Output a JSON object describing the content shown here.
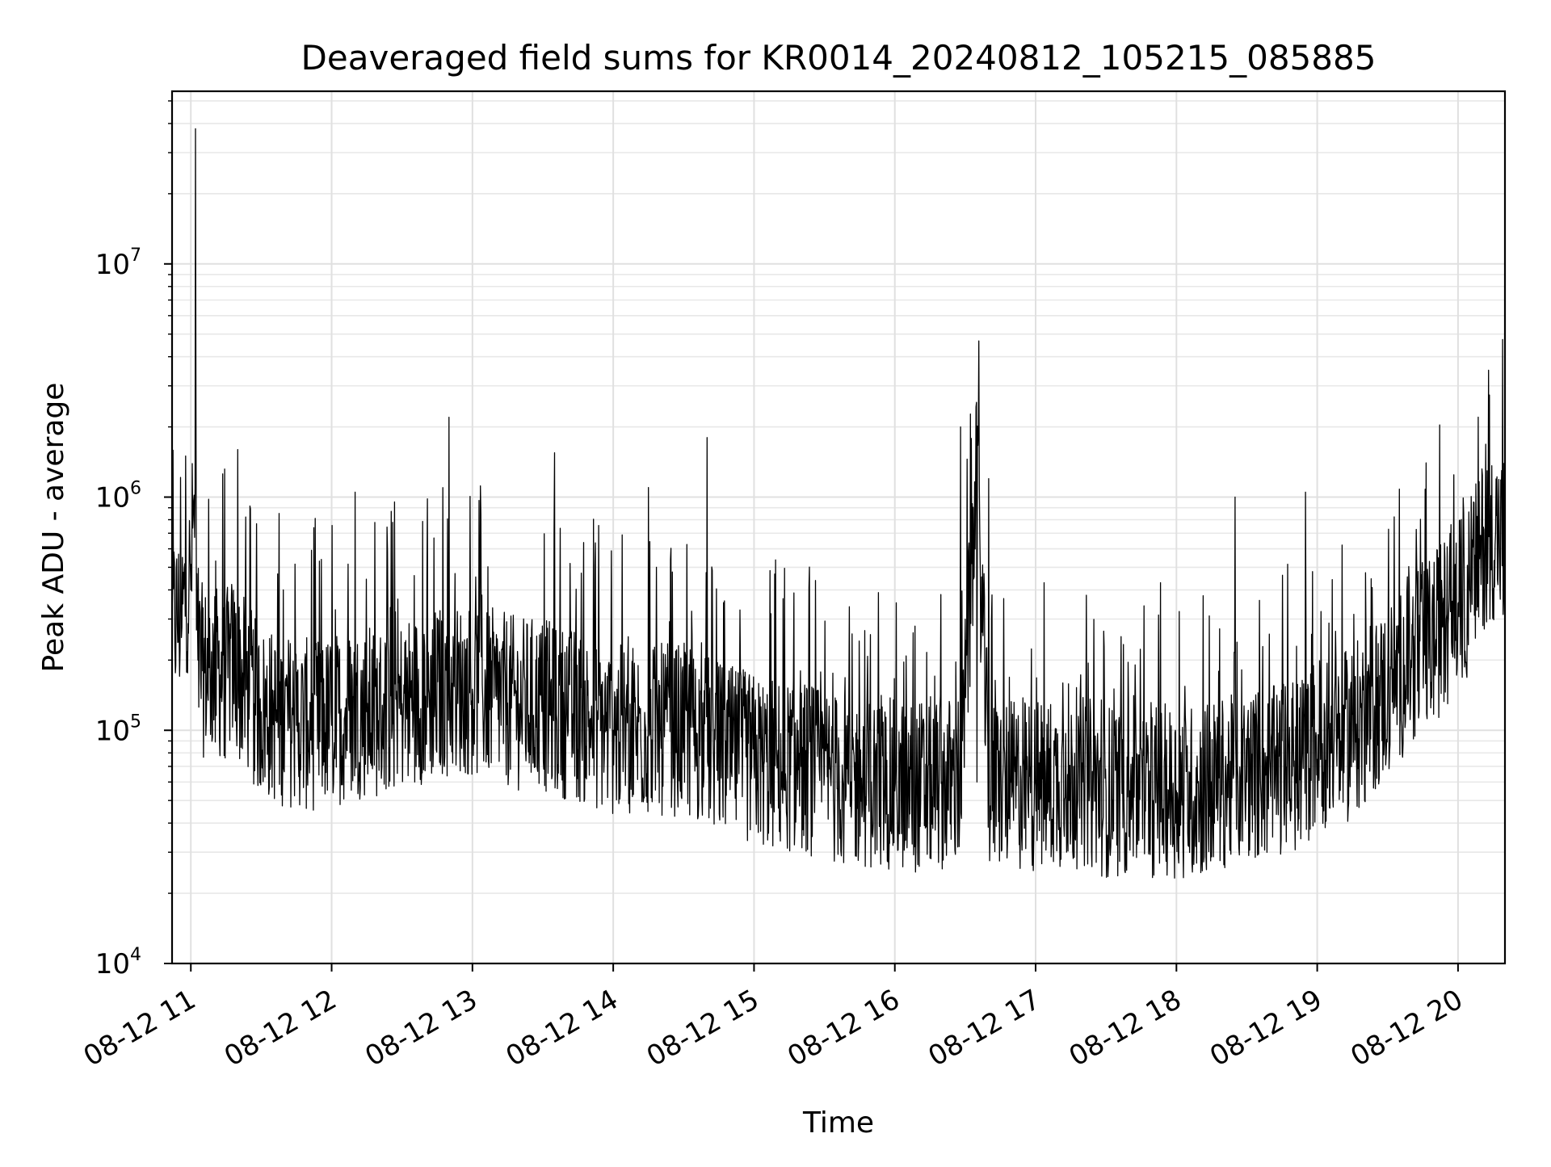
{
  "chart_data": {
    "type": "line",
    "title": "Deaveraged field sums for KR0014_20240812_105215_085885",
    "xlabel": "Time",
    "ylabel": "Peak ADU - average",
    "yscale": "log",
    "ylim": [
      10000,
      55000000
    ],
    "xlim": [
      "2024-08-12 10:52",
      "2024-08-12 20:20"
    ],
    "grid": "major and minor",
    "x_ticks": [
      "08-12 11",
      "08-12 12",
      "08-12 13",
      "08-12 14",
      "08-12 15",
      "08-12 16",
      "08-12 17",
      "08-12 18",
      "08-12 19",
      "08-12 20"
    ],
    "y_ticks": [
      {
        "value": 10000,
        "base": "10",
        "exp": "4"
      },
      {
        "value": 100000,
        "base": "10",
        "exp": "5"
      },
      {
        "value": 1000000,
        "base": "10",
        "exp": "6"
      },
      {
        "value": 10000000,
        "base": "10",
        "exp": "7"
      }
    ],
    "series": [
      {
        "color": "#000000",
        "x": [
          "2024-08-12 10:52",
          "2024-08-12 10:56",
          "2024-08-12 10:58",
          "2024-08-12 11:00",
          "2024-08-12 11:01",
          "2024-08-12 11:02",
          "2024-08-12 11:03",
          "2024-08-12 11:05",
          "2024-08-12 11:10",
          "2024-08-12 11:15",
          "2024-08-12 11:18",
          "2024-08-12 11:20",
          "2024-08-12 11:25",
          "2024-08-12 11:27",
          "2024-08-12 11:30",
          "2024-08-12 11:35",
          "2024-08-12 11:40",
          "2024-08-12 11:45",
          "2024-08-12 11:50",
          "2024-08-12 12:00",
          "2024-08-12 12:10",
          "2024-08-12 12:15",
          "2024-08-12 12:20",
          "2024-08-12 12:30",
          "2024-08-12 12:40",
          "2024-08-12 12:50",
          "2024-08-12 13:00",
          "2024-08-12 13:10",
          "2024-08-12 13:20",
          "2024-08-12 13:30",
          "2024-08-12 13:35",
          "2024-08-12 13:40",
          "2024-08-12 13:50",
          "2024-08-12 14:00",
          "2024-08-12 14:10",
          "2024-08-12 14:15",
          "2024-08-12 14:20",
          "2024-08-12 14:30",
          "2024-08-12 14:40",
          "2024-08-12 14:50",
          "2024-08-12 15:00",
          "2024-08-12 15:10",
          "2024-08-12 15:20",
          "2024-08-12 15:30",
          "2024-08-12 15:40",
          "2024-08-12 15:50",
          "2024-08-12 16:00",
          "2024-08-12 16:10",
          "2024-08-12 16:20",
          "2024-08-12 16:28",
          "2024-08-12 16:35",
          "2024-08-12 16:40",
          "2024-08-12 16:50",
          "2024-08-12 17:00",
          "2024-08-12 17:10",
          "2024-08-12 17:20",
          "2024-08-12 17:30",
          "2024-08-12 17:40",
          "2024-08-12 17:50",
          "2024-08-12 18:00",
          "2024-08-12 18:10",
          "2024-08-12 18:20",
          "2024-08-12 18:25",
          "2024-08-12 18:30",
          "2024-08-12 18:40",
          "2024-08-12 18:50",
          "2024-08-12 18:55",
          "2024-08-12 19:00",
          "2024-08-12 19:10",
          "2024-08-12 19:20",
          "2024-08-12 19:30",
          "2024-08-12 19:40",
          "2024-08-12 19:50",
          "2024-08-12 19:55",
          "2024-08-12 20:00",
          "2024-08-12 20:05",
          "2024-08-12 20:10",
          "2024-08-12 20:13",
          "2024-08-12 20:16",
          "2024-08-12 20:20"
        ],
        "y": [
          300000,
          250000,
          450000,
          400000,
          800000,
          38000000,
          200000,
          180000,
          170000,
          200000,
          170000,
          1600000,
          150000,
          130000,
          120000,
          110000,
          115000,
          105000,
          110000,
          105000,
          1050000,
          120000,
          110000,
          130000,
          140000,
          2200000,
          150000,
          140000,
          130000,
          120000,
          1550000,
          120000,
          110000,
          100000,
          95000,
          1100000,
          100000,
          90000,
          1800000,
          80000,
          70000,
          75000,
          70000,
          65000,
          60000,
          60000,
          55000,
          58000,
          60000,
          2000000,
          60000,
          1200000,
          55000,
          58000,
          60000,
          60000,
          55000,
          55000,
          50000,
          55000,
          55000,
          60000,
          1000000,
          60000,
          65000,
          70000,
          1050000,
          75000,
          90000,
          110000,
          150000,
          200000,
          250000,
          300000,
          350000,
          400000,
          600000,
          3500000,
          700000,
          650000
        ]
      }
    ]
  }
}
